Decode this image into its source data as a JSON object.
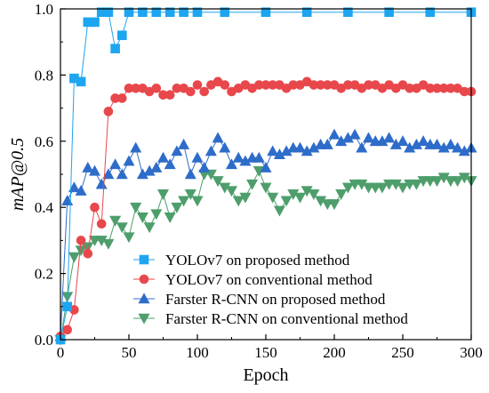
{
  "chart_data": {
    "type": "line",
    "title": "",
    "xlabel": "Epoch",
    "ylabel": "mAP@0.5",
    "xlim": [
      0,
      300
    ],
    "ylim": [
      0,
      1.0
    ],
    "xticks": [
      "0",
      "50",
      "100",
      "150",
      "200",
      "250",
      "300"
    ],
    "yticks": [
      "0.0",
      "0.2",
      "0.4",
      "0.6",
      "0.8",
      "1.0"
    ],
    "grid": false,
    "legend_position": "bottom-center",
    "series": [
      {
        "name": "YOLOv7 on proposed method",
        "color": "#1ea5ef",
        "marker": "square",
        "x": [
          0,
          5,
          10,
          15,
          20,
          25,
          30,
          35,
          40,
          45,
          50,
          60,
          70,
          80,
          90,
          100,
          120,
          150,
          180,
          210,
          240,
          270,
          300
        ],
        "y": [
          0.0,
          0.1,
          0.79,
          0.78,
          0.96,
          0.96,
          0.99,
          0.99,
          0.88,
          0.92,
          0.99,
          0.99,
          0.99,
          0.99,
          0.99,
          0.99,
          0.99,
          0.99,
          0.99,
          0.99,
          0.99,
          0.99,
          0.99
        ]
      },
      {
        "name": "YOLOv7 on conventional method",
        "color": "#e8474b",
        "marker": "circle",
        "x": [
          0,
          5,
          10,
          15,
          20,
          25,
          30,
          35,
          40,
          45,
          50,
          55,
          60,
          65,
          70,
          75,
          80,
          85,
          90,
          95,
          100,
          105,
          110,
          115,
          120,
          125,
          130,
          135,
          140,
          145,
          150,
          155,
          160,
          165,
          170,
          175,
          180,
          185,
          190,
          195,
          200,
          205,
          210,
          215,
          220,
          225,
          230,
          235,
          240,
          245,
          250,
          255,
          260,
          265,
          270,
          275,
          280,
          285,
          290,
          295,
          300
        ],
        "y": [
          0.01,
          0.03,
          0.09,
          0.3,
          0.26,
          0.4,
          0.35,
          0.69,
          0.73,
          0.73,
          0.76,
          0.76,
          0.76,
          0.75,
          0.76,
          0.74,
          0.74,
          0.76,
          0.76,
          0.75,
          0.77,
          0.75,
          0.77,
          0.78,
          0.77,
          0.75,
          0.76,
          0.77,
          0.76,
          0.77,
          0.77,
          0.77,
          0.77,
          0.76,
          0.77,
          0.77,
          0.78,
          0.77,
          0.77,
          0.77,
          0.77,
          0.76,
          0.77,
          0.77,
          0.76,
          0.77,
          0.77,
          0.76,
          0.77,
          0.76,
          0.77,
          0.76,
          0.76,
          0.77,
          0.76,
          0.76,
          0.76,
          0.76,
          0.76,
          0.75,
          0.75
        ]
      },
      {
        "name": "Farster R-CNN on proposed method",
        "color": "#2e6cc9",
        "marker": "triangle",
        "x": [
          0,
          5,
          10,
          15,
          20,
          25,
          30,
          35,
          40,
          45,
          50,
          55,
          60,
          65,
          70,
          75,
          80,
          85,
          90,
          95,
          100,
          105,
          110,
          115,
          120,
          125,
          130,
          135,
          140,
          145,
          150,
          155,
          160,
          165,
          170,
          175,
          180,
          185,
          190,
          195,
          200,
          205,
          210,
          215,
          220,
          225,
          230,
          235,
          240,
          245,
          250,
          255,
          260,
          265,
          270,
          275,
          280,
          285,
          290,
          295,
          300
        ],
        "y": [
          0.01,
          0.42,
          0.46,
          0.45,
          0.52,
          0.51,
          0.47,
          0.5,
          0.53,
          0.5,
          0.54,
          0.58,
          0.5,
          0.51,
          0.52,
          0.55,
          0.53,
          0.57,
          0.59,
          0.5,
          0.55,
          0.52,
          0.57,
          0.61,
          0.58,
          0.53,
          0.55,
          0.54,
          0.55,
          0.55,
          0.52,
          0.57,
          0.56,
          0.57,
          0.58,
          0.58,
          0.57,
          0.58,
          0.59,
          0.59,
          0.62,
          0.6,
          0.61,
          0.62,
          0.58,
          0.61,
          0.6,
          0.6,
          0.61,
          0.59,
          0.6,
          0.58,
          0.59,
          0.6,
          0.59,
          0.59,
          0.58,
          0.59,
          0.58,
          0.57,
          0.58
        ]
      },
      {
        "name": "Farster R-CNN on conventional method",
        "color": "#4e9e6c",
        "marker": "triangle-down",
        "x": [
          0,
          5,
          10,
          15,
          20,
          25,
          30,
          35,
          40,
          45,
          50,
          55,
          60,
          65,
          70,
          75,
          80,
          85,
          90,
          95,
          100,
          105,
          110,
          115,
          120,
          125,
          130,
          135,
          140,
          145,
          150,
          155,
          160,
          165,
          170,
          175,
          180,
          185,
          190,
          195,
          200,
          205,
          210,
          215,
          220,
          225,
          230,
          235,
          240,
          245,
          250,
          255,
          260,
          265,
          270,
          275,
          280,
          285,
          290,
          295,
          300
        ],
        "y": [
          0.0,
          0.13,
          0.25,
          0.27,
          0.28,
          0.3,
          0.3,
          0.29,
          0.36,
          0.34,
          0.31,
          0.4,
          0.37,
          0.34,
          0.38,
          0.44,
          0.37,
          0.4,
          0.42,
          0.44,
          0.42,
          0.5,
          0.5,
          0.48,
          0.46,
          0.45,
          0.42,
          0.43,
          0.47,
          0.51,
          0.46,
          0.43,
          0.39,
          0.42,
          0.44,
          0.43,
          0.45,
          0.44,
          0.42,
          0.41,
          0.41,
          0.44,
          0.46,
          0.47,
          0.47,
          0.46,
          0.46,
          0.46,
          0.47,
          0.47,
          0.46,
          0.47,
          0.47,
          0.48,
          0.48,
          0.48,
          0.49,
          0.48,
          0.48,
          0.49,
          0.48
        ]
      }
    ]
  }
}
